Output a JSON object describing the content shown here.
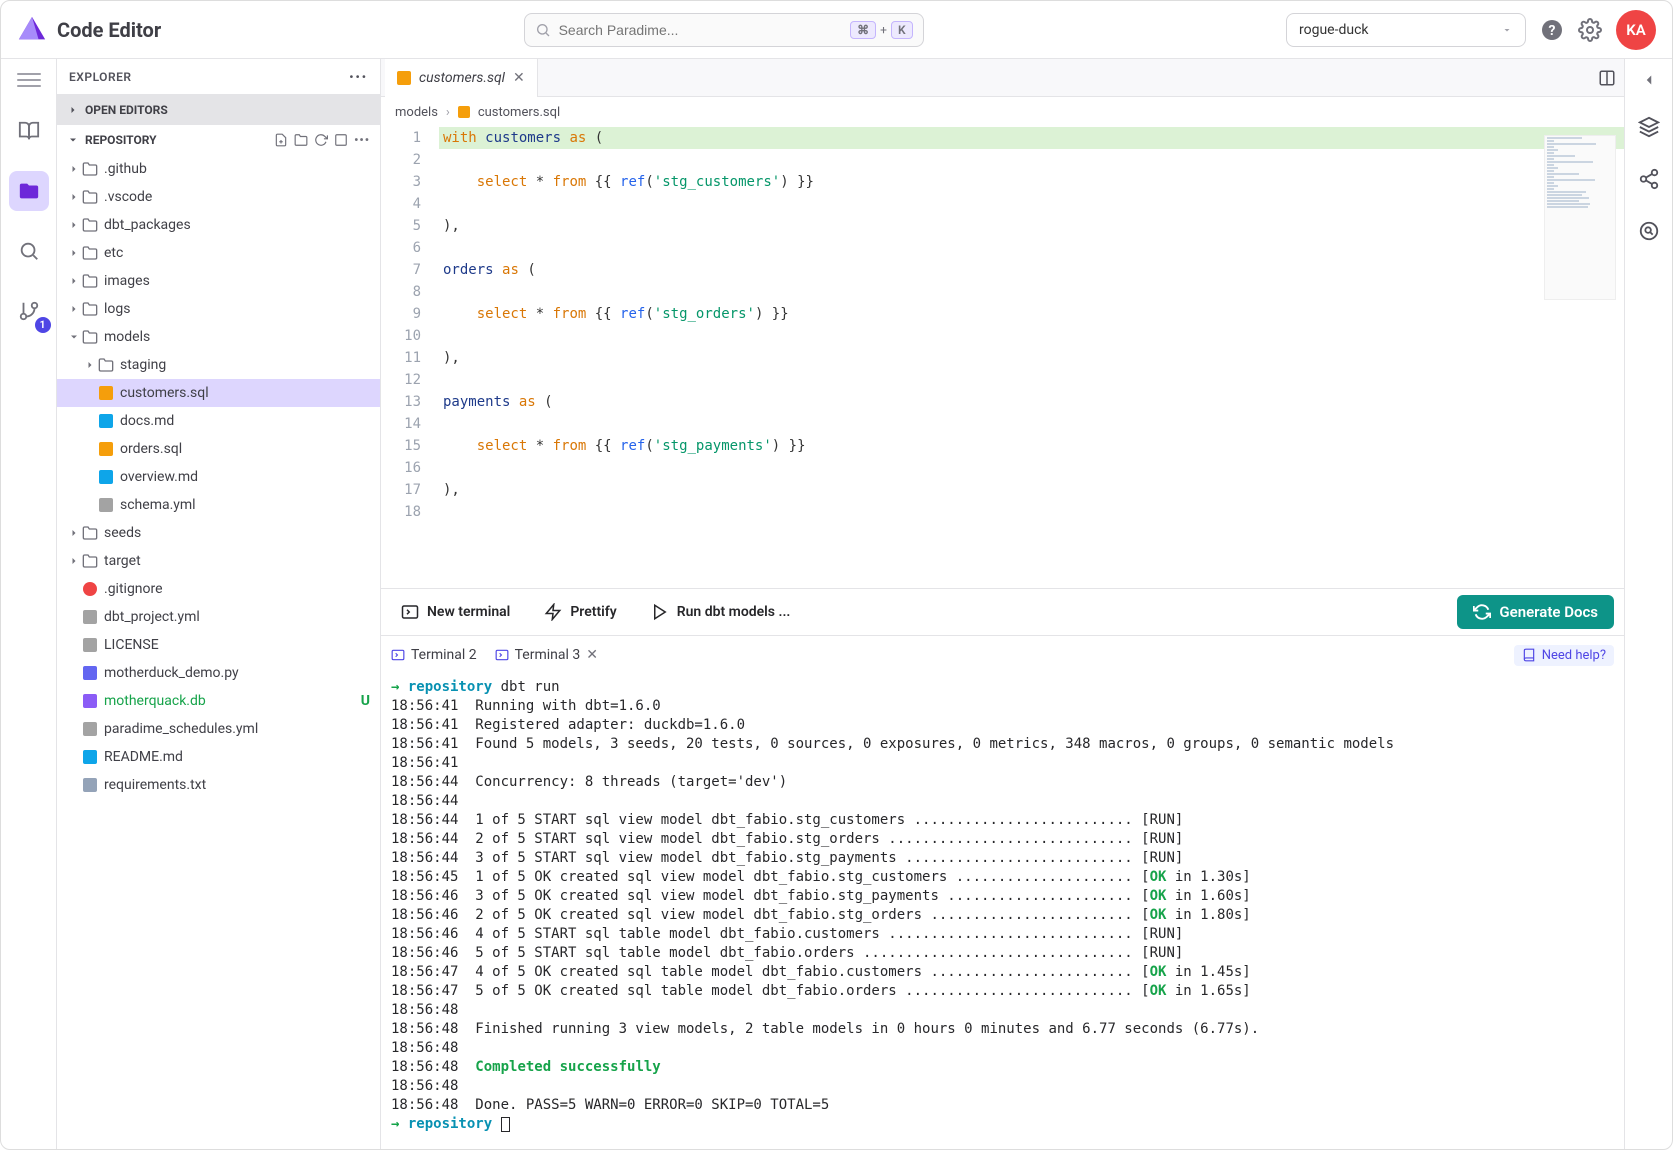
{
  "header": {
    "app_title": "Code Editor",
    "search_placeholder": "Search Paradime...",
    "shortcut_plus": "+",
    "shortcut_key": "K",
    "workspace_selected": "rogue-duck",
    "avatar_initials": "KA",
    "avatar_bg": "#ef4444"
  },
  "iconbar": {
    "git_badge": "1"
  },
  "explorer": {
    "title": "EXPLORER",
    "open_editors_label": "OPEN EDITORS",
    "repository_label": "REPOSITORY",
    "tree": [
      {
        "depth": 0,
        "chev": "right",
        "icon": "folder",
        "label": ".github"
      },
      {
        "depth": 0,
        "chev": "right",
        "icon": "folder",
        "label": ".vscode"
      },
      {
        "depth": 0,
        "chev": "right",
        "icon": "folder",
        "label": "dbt_packages"
      },
      {
        "depth": 0,
        "chev": "right",
        "icon": "folder",
        "label": "etc"
      },
      {
        "depth": 0,
        "chev": "right",
        "icon": "folder",
        "label": "images"
      },
      {
        "depth": 0,
        "chev": "right",
        "icon": "folder",
        "label": "logs"
      },
      {
        "depth": 0,
        "chev": "down",
        "icon": "folder",
        "label": "models"
      },
      {
        "depth": 1,
        "chev": "right",
        "icon": "folder",
        "label": "staging"
      },
      {
        "depth": 1,
        "chev": "",
        "icon": "sql",
        "label": "customers.sql",
        "selected": true
      },
      {
        "depth": 1,
        "chev": "",
        "icon": "md",
        "label": "docs.md"
      },
      {
        "depth": 1,
        "chev": "",
        "icon": "sql",
        "label": "orders.sql"
      },
      {
        "depth": 1,
        "chev": "",
        "icon": "md",
        "label": "overview.md"
      },
      {
        "depth": 1,
        "chev": "",
        "icon": "yml",
        "label": "schema.yml"
      },
      {
        "depth": 0,
        "chev": "right",
        "icon": "folder",
        "label": "seeds"
      },
      {
        "depth": 0,
        "chev": "right",
        "icon": "folder",
        "label": "target"
      },
      {
        "depth": 0,
        "chev": "",
        "icon": "git",
        "label": ".gitignore"
      },
      {
        "depth": 0,
        "chev": "",
        "icon": "yml",
        "label": "dbt_project.yml"
      },
      {
        "depth": 0,
        "chev": "",
        "icon": "lic",
        "label": "LICENSE"
      },
      {
        "depth": 0,
        "chev": "",
        "icon": "py",
        "label": "motherduck_demo.py"
      },
      {
        "depth": 0,
        "chev": "",
        "icon": "db",
        "label": "motherquack.db",
        "green": true,
        "status": "U"
      },
      {
        "depth": 0,
        "chev": "",
        "icon": "yml",
        "label": "paradime_schedules.yml"
      },
      {
        "depth": 0,
        "chev": "",
        "icon": "md",
        "label": "README.md"
      },
      {
        "depth": 0,
        "chev": "",
        "icon": "txt",
        "label": "requirements.txt"
      }
    ]
  },
  "editor": {
    "tab_icon": "sql",
    "tab_label": "customers.sql",
    "breadcrumb_root": "models",
    "breadcrumb_file": "customers.sql",
    "lines": [
      {
        "n": 1,
        "hl": true,
        "tokens": [
          [
            "kw-with",
            "with "
          ],
          [
            "ident",
            "customers "
          ],
          [
            "kw-as",
            "as "
          ],
          [
            "",
            "("
          ]
        ]
      },
      {
        "n": 2,
        "tokens": []
      },
      {
        "n": 3,
        "tokens": [
          [
            "",
            "    "
          ],
          [
            "kw-select",
            "select "
          ],
          [
            "",
            "* "
          ],
          [
            "kw-from",
            "from "
          ],
          [
            "",
            "{{ "
          ],
          [
            "kw-ref",
            "ref"
          ],
          [
            "",
            "("
          ],
          [
            "str",
            "'stg_customers'"
          ],
          [
            "",
            ") }}"
          ]
        ]
      },
      {
        "n": 4,
        "tokens": []
      },
      {
        "n": 5,
        "tokens": [
          [
            "",
            "),"
          ]
        ]
      },
      {
        "n": 6,
        "tokens": []
      },
      {
        "n": 7,
        "tokens": [
          [
            "ident",
            "orders "
          ],
          [
            "kw-as",
            "as "
          ],
          [
            "",
            "("
          ]
        ]
      },
      {
        "n": 8,
        "tokens": []
      },
      {
        "n": 9,
        "tokens": [
          [
            "",
            "    "
          ],
          [
            "kw-select",
            "select "
          ],
          [
            "",
            "* "
          ],
          [
            "kw-from",
            "from "
          ],
          [
            "",
            "{{ "
          ],
          [
            "kw-ref",
            "ref"
          ],
          [
            "",
            "("
          ],
          [
            "str",
            "'stg_orders'"
          ],
          [
            "",
            ") }}"
          ]
        ]
      },
      {
        "n": 10,
        "tokens": []
      },
      {
        "n": 11,
        "tokens": [
          [
            "",
            "),"
          ]
        ]
      },
      {
        "n": 12,
        "tokens": []
      },
      {
        "n": 13,
        "tokens": [
          [
            "ident",
            "payments "
          ],
          [
            "kw-as",
            "as "
          ],
          [
            "",
            "("
          ]
        ]
      },
      {
        "n": 14,
        "tokens": []
      },
      {
        "n": 15,
        "tokens": [
          [
            "",
            "    "
          ],
          [
            "kw-select",
            "select "
          ],
          [
            "",
            "* "
          ],
          [
            "kw-from",
            "from "
          ],
          [
            "",
            "{{ "
          ],
          [
            "kw-ref",
            "ref"
          ],
          [
            "",
            "("
          ],
          [
            "str",
            "'stg_payments'"
          ],
          [
            "",
            ") }}"
          ]
        ]
      },
      {
        "n": 16,
        "tokens": []
      },
      {
        "n": 17,
        "tokens": [
          [
            "",
            "),"
          ]
        ]
      },
      {
        "n": 18,
        "tokens": []
      }
    ]
  },
  "toolbar": {
    "new_terminal": "New terminal",
    "prettify": "Prettify",
    "run_models": "Run dbt models ...",
    "generate_docs": "Generate Docs"
  },
  "terminal": {
    "tabs": [
      {
        "label": "Terminal 2"
      },
      {
        "label": "Terminal 3",
        "closable": true
      }
    ],
    "need_help": "Need help?",
    "prompt_repo": "repository",
    "prompt_cmd": "dbt run",
    "lines": [
      [
        [
          "",
          "18:56:41  Running with dbt=1.6.0"
        ]
      ],
      [
        [
          "",
          "18:56:41  Registered adapter: duckdb=1.6.0"
        ]
      ],
      [
        [
          "",
          "18:56:41  Found 5 models, 3 seeds, 20 tests, 0 sources, 0 exposures, 0 metrics, 348 macros, 0 groups, 0 semantic models"
        ]
      ],
      [
        [
          "",
          "18:56:41"
        ]
      ],
      [
        [
          "",
          "18:56:44  Concurrency: 8 threads (target='dev')"
        ]
      ],
      [
        [
          "",
          "18:56:44"
        ]
      ],
      [
        [
          "",
          "18:56:44  1 of 5 START sql view model dbt_fabio.stg_customers .......................... [RUN]"
        ]
      ],
      [
        [
          "",
          "18:56:44  2 of 5 START sql view model dbt_fabio.stg_orders ............................. [RUN]"
        ]
      ],
      [
        [
          "",
          "18:56:44  3 of 5 START sql view model dbt_fabio.stg_payments ........................... [RUN]"
        ]
      ],
      [
        [
          "",
          "18:56:45  1 of 5 OK created sql view model dbt_fabio.stg_customers ..................... ["
        ],
        [
          "t-ok",
          "OK"
        ],
        [
          "",
          " in 1.30s]"
        ]
      ],
      [
        [
          "",
          "18:56:46  3 of 5 OK created sql view model dbt_fabio.stg_payments ...................... ["
        ],
        [
          "t-ok",
          "OK"
        ],
        [
          "",
          " in 1.60s]"
        ]
      ],
      [
        [
          "",
          "18:56:46  2 of 5 OK created sql view model dbt_fabio.stg_orders ........................ ["
        ],
        [
          "t-ok",
          "OK"
        ],
        [
          "",
          " in 1.80s]"
        ]
      ],
      [
        [
          "",
          "18:56:46  4 of 5 START sql table model dbt_fabio.customers ............................. [RUN]"
        ]
      ],
      [
        [
          "",
          "18:56:46  5 of 5 START sql table model dbt_fabio.orders ................................ [RUN]"
        ]
      ],
      [
        [
          "",
          "18:56:47  4 of 5 OK created sql table model dbt_fabio.customers ........................ ["
        ],
        [
          "t-ok",
          "OK"
        ],
        [
          "",
          " in 1.45s]"
        ]
      ],
      [
        [
          "",
          "18:56:47  5 of 5 OK created sql table model dbt_fabio.orders ........................... ["
        ],
        [
          "t-ok",
          "OK"
        ],
        [
          "",
          " in 1.65s]"
        ]
      ],
      [
        [
          "",
          "18:56:48"
        ]
      ],
      [
        [
          "",
          "18:56:48  Finished running 3 view models, 2 table models in 0 hours 0 minutes and 6.77 seconds (6.77s)."
        ]
      ],
      [
        [
          "",
          "18:56:48"
        ]
      ],
      [
        [
          "",
          "18:56:48  "
        ],
        [
          "t-success",
          "Completed successfully"
        ]
      ],
      [
        [
          "",
          "18:56:48"
        ]
      ],
      [
        [
          "",
          "18:56:48  Done. PASS=5 WARN=0 ERROR=0 SKIP=0 TOTAL=5"
        ]
      ]
    ]
  },
  "colors": {
    "accent_teal": "#0d9488",
    "accent_violet": "#6d28d9",
    "selection_bg": "#ddd6fe",
    "line_highlight": "#dcf2d5"
  }
}
